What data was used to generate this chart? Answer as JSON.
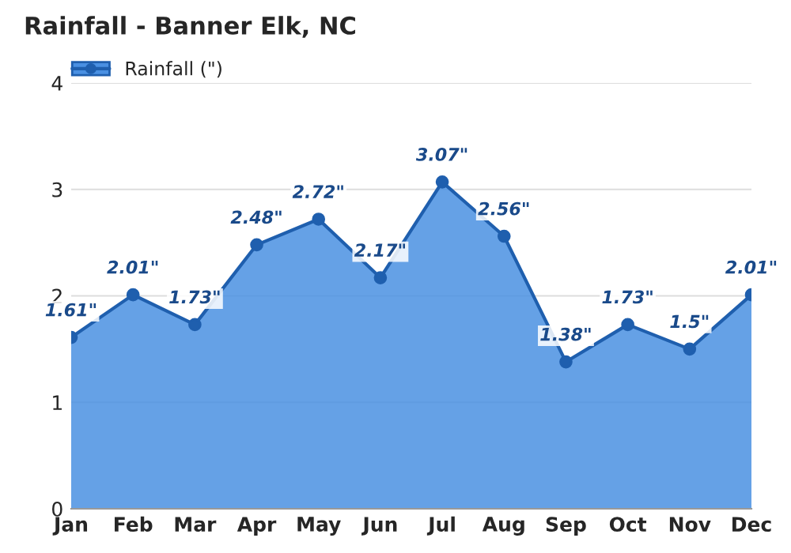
{
  "chart_data": {
    "type": "area",
    "title": "Rainfall - Banner Elk, NC",
    "categories": [
      "Jan",
      "Feb",
      "Mar",
      "Apr",
      "May",
      "Jun",
      "Jul",
      "Aug",
      "Sep",
      "Oct",
      "Nov",
      "Dec"
    ],
    "series": [
      {
        "name": "Rainfall (\")",
        "color": "#4a90e2",
        "values": [
          1.61,
          2.01,
          1.73,
          2.48,
          2.72,
          2.17,
          3.07,
          2.56,
          1.38,
          1.73,
          1.5,
          2.01
        ],
        "value_labels": [
          "1.61\"",
          "2.01\"",
          "1.73\"",
          "2.48\"",
          "2.72\"",
          "2.17\"",
          "3.07\"",
          "2.56\"",
          "1.38\"",
          "1.73\"",
          "1.5\"",
          "2.01\""
        ]
      }
    ],
    "ylim": [
      0,
      4
    ],
    "yticks": [
      0,
      1,
      2,
      3,
      4
    ],
    "grid": "y",
    "legend": "top left",
    "marker": "circle",
    "line_style": "solid"
  }
}
